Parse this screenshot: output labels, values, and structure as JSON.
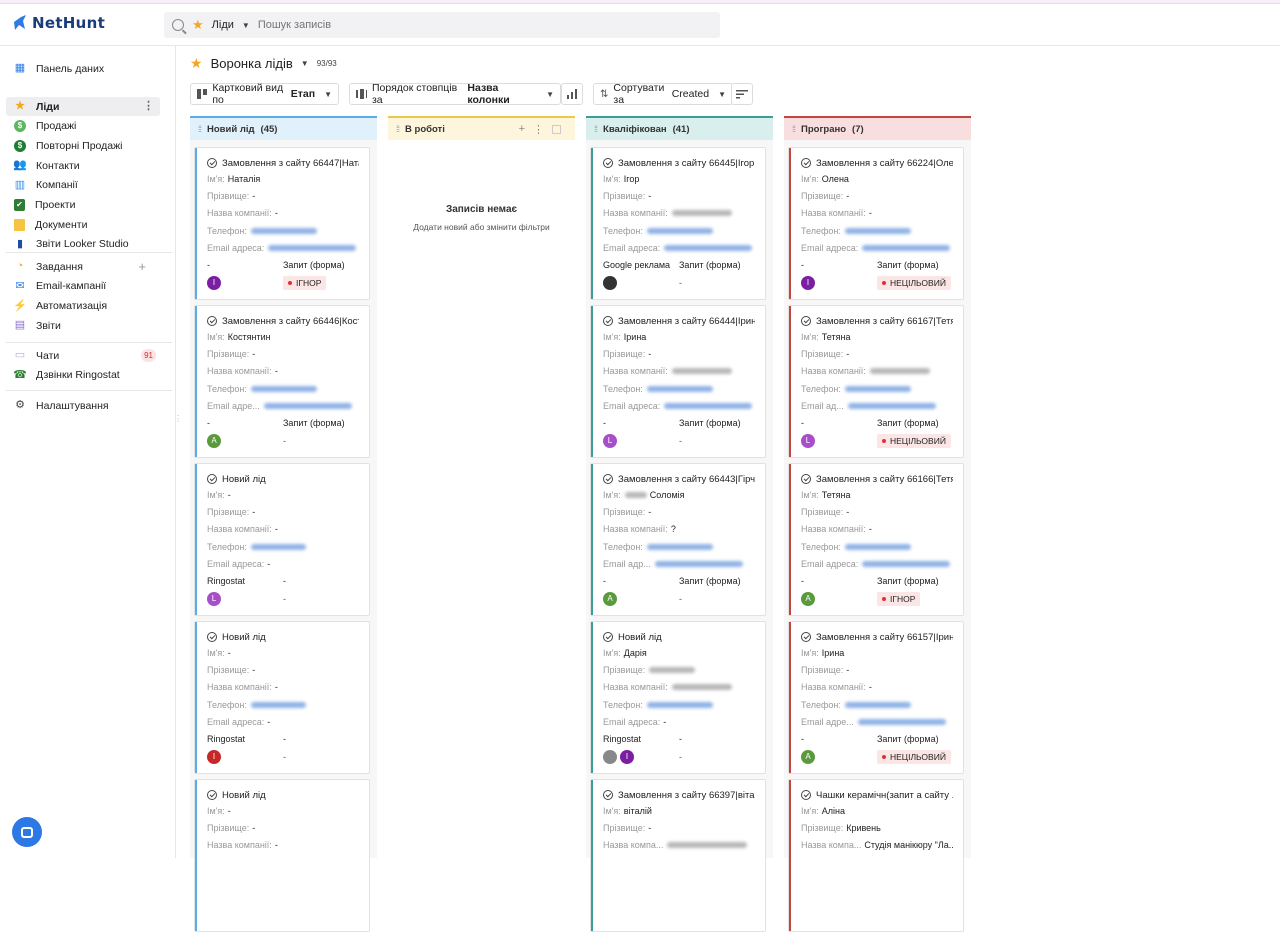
{
  "app": {
    "logo_text": "NetHunt"
  },
  "search": {
    "scope": "Ліди",
    "placeholder": "Пошук записів"
  },
  "sidebar": {
    "items": [
      {
        "id": "dashboard",
        "label": "Панель даних",
        "icon": "dashboard-icon",
        "color": "#2f7be5"
      },
      {
        "id": "leads",
        "label": "Ліди",
        "icon": "star-icon",
        "color": "#f4a623",
        "active": true
      },
      {
        "id": "sales",
        "label": "Продажі",
        "icon": "dollar-icon",
        "color": "#5cb85c"
      },
      {
        "id": "resales",
        "label": "Повторні Продажі",
        "icon": "dollar-icon",
        "color": "#1e7e34"
      },
      {
        "id": "contacts",
        "label": "Контакти",
        "icon": "people-icon",
        "color": "#6b6bd6"
      },
      {
        "id": "companies",
        "label": "Компанії",
        "icon": "building-icon",
        "color": "#3a8ee6"
      },
      {
        "id": "projects",
        "label": "Проекти",
        "icon": "clipboard-icon",
        "color": "#2e7d32"
      },
      {
        "id": "documents",
        "label": "Документи",
        "icon": "folder-icon",
        "color": "#f6c343"
      },
      {
        "id": "looker",
        "label": "Звіти Looker Studio",
        "icon": "bar-chart-icon",
        "color": "#1a4fa3"
      }
    ],
    "items2": [
      {
        "id": "tasks",
        "label": "Завдання",
        "icon": "check-circle-icon",
        "color": "#f4a623"
      },
      {
        "id": "email",
        "label": "Email-кампанії",
        "icon": "mail-icon",
        "color": "#2f7be5"
      },
      {
        "id": "automation",
        "label": "Автоматизація",
        "icon": "bolt-icon",
        "color": "#f4a623"
      },
      {
        "id": "reports",
        "label": "Звіти",
        "icon": "report-icon",
        "color": "#8a6fd1"
      }
    ],
    "items3": [
      {
        "id": "chats",
        "label": "Чати",
        "icon": "chat-icon",
        "color": "#c5a3e8",
        "badge": "91"
      },
      {
        "id": "ringostat",
        "label": "Дзвінки Ringostat",
        "icon": "phone-icon",
        "color": "#2e7d32"
      }
    ],
    "settings": {
      "label": "Налаштування",
      "icon": "gear-icon"
    }
  },
  "main": {
    "title": "Воронка лідів",
    "count": "93/93",
    "toolbar": {
      "view_prefix": "Картковий вид по",
      "view_value": "Етап",
      "order_prefix": "Порядок стовпців за",
      "order_value": "Назва колонки",
      "sort_prefix": "Сортувати за",
      "sort_value": "Created"
    }
  },
  "columns": [
    {
      "id": "new",
      "title": "Новий лід",
      "count": "(45)",
      "head_bg": "#e1f1fb",
      "bar": "#5aaee8",
      "cards": [
        {
          "title": "Замовлення з сайту 66447|Ната...",
          "name": "Наталія",
          "surname": "-",
          "company": "-",
          "phone": true,
          "email_label": "Email адреса:",
          "email": true,
          "b1": "-",
          "b2": "Запит (форма)",
          "avatars": [
            {
              "l": "I",
              "c": "#7b1fa2"
            }
          ],
          "tag": "ІГНОР"
        },
        {
          "title": "Замовлення з сайту 66446|Кост...",
          "name": "Костянтин",
          "surname": "-",
          "company": "-",
          "phone": true,
          "email_label": "Email адре...",
          "email": true,
          "b1": "-",
          "b2": "Запит (форма)",
          "avatars": [
            {
              "l": "A",
              "c": "#5a9a3c"
            }
          ],
          "tag": ""
        },
        {
          "title": "Новий лід",
          "title_blur": true,
          "name": "-",
          "surname": "-",
          "company": "-",
          "phone": true,
          "phone_link": true,
          "email_label": "Email адреса:",
          "email": false,
          "email_value": "-",
          "b1": "Ringostat",
          "b2": "-",
          "avatars": [
            {
              "l": "L",
              "c": "#a64fc9"
            }
          ],
          "tag": ""
        },
        {
          "title": "Новий лід",
          "title_blur": true,
          "name": "-",
          "surname": "-",
          "company": "-",
          "phone": true,
          "phone_link": true,
          "email_label": "Email адреса:",
          "email": false,
          "email_value": "-",
          "b1": "Ringostat",
          "b2": "-",
          "avatars": [
            {
              "l": "I",
              "c": "#c62828"
            }
          ],
          "tag": ""
        },
        {
          "title": "Новий лід",
          "title_blur": true,
          "name": "-",
          "surname": "-",
          "company": "-",
          "phone": false,
          "email_label": "",
          "email": false,
          "b1": "",
          "b2": "",
          "avatars": [],
          "tag": ""
        }
      ]
    },
    {
      "id": "inwork",
      "title": "В роботі",
      "count": "",
      "head_bg": "#fdf6dc",
      "bar": "#e8c94a",
      "empty_title": "Записів немає",
      "empty_sub": "Додати новий або змінити фільтри",
      "cards": []
    },
    {
      "id": "qualified",
      "title": "Кваліфікован",
      "count": "(41)",
      "head_bg": "#d9efed",
      "bar": "#3d9d98",
      "cards": [
        {
          "title": "Замовлення з сайту 66445|Ігор",
          "name": "Ігор",
          "surname": "-",
          "company": "blur",
          "phone": true,
          "email_label": "Email адреса:",
          "email": true,
          "b1": "Google реклама",
          "b2": "Запит (форма)",
          "avatars": [
            {
              "l": "",
              "c": "#333"
            }
          ],
          "tag": ""
        },
        {
          "title": "Замовлення з сайту 66444|Ірина",
          "name": "Ірина",
          "surname": "-",
          "company": "blur",
          "phone": true,
          "email_label": "Email адреса:",
          "email": true,
          "b1": "-",
          "b2": "Запит (форма)",
          "avatars": [
            {
              "l": "L",
              "c": "#a64fc9"
            }
          ],
          "tag": ""
        },
        {
          "title": "Замовлення з сайту 66443|Гірч...",
          "name": "Соломія",
          "name_blur": true,
          "surname": "-",
          "company": "?",
          "phone": true,
          "email_label": "Email адр...",
          "email": true,
          "b1": "-",
          "b2": "Запит (форма)",
          "avatars": [
            {
              "l": "A",
              "c": "#5a9a3c"
            }
          ],
          "tag": ""
        },
        {
          "title": "Новий лід",
          "title_blur": true,
          "name": "Дарія",
          "surname": "blur",
          "company": "blur",
          "phone": true,
          "email_label": "Email адреса:",
          "email": false,
          "email_value": "-",
          "b1": "Ringostat",
          "b2": "-",
          "avatars": [
            {
              "l": "",
              "c": "#888"
            },
            {
              "l": "I",
              "c": "#7b1fa2"
            }
          ],
          "tag": ""
        },
        {
          "title": "Замовлення з сайту 66397|віта...",
          "name": "віталій",
          "surname": "-",
          "company": "blur",
          "phone": false,
          "email_label": "",
          "email": false,
          "b1": "",
          "b2": "",
          "avatars": [],
          "tag": ""
        }
      ]
    },
    {
      "id": "lost",
      "title": "Програно",
      "count": "(7)",
      "head_bg": "#f8dede",
      "bar": "#c0463f",
      "cards": [
        {
          "title": "Замовлення з сайту 66224|Олена",
          "name": "Олена",
          "surname": "-",
          "company": "-",
          "phone": true,
          "email_label": "Email адреса:",
          "email": true,
          "b1": "-",
          "b2": "Запит (форма)",
          "avatars": [
            {
              "l": "I",
              "c": "#7b1fa2"
            }
          ],
          "tag": "НЕЦІЛЬОВИЙ"
        },
        {
          "title": "Замовлення з сайту 66167|Тетя...",
          "name": "Тетяна",
          "surname": "-",
          "company": "blur",
          "phone": true,
          "email_label": "Email ад...",
          "email": true,
          "b1": "-",
          "b2": "Запит (форма)",
          "avatars": [
            {
              "l": "L",
              "c": "#a64fc9"
            }
          ],
          "tag": "НЕЦІЛЬОВИЙ"
        },
        {
          "title": "Замовлення з сайту 66166|Тетя...",
          "name": "Тетяна",
          "surname": "-",
          "company": "-",
          "phone": true,
          "email_label": "Email адреса:",
          "email": true,
          "b1": "-",
          "b2": "Запит (форма)",
          "avatars": [
            {
              "l": "A",
              "c": "#5a9a3c"
            }
          ],
          "tag": "ІГНОР"
        },
        {
          "title": "Замовлення з сайту 66157|Ірина",
          "name": "Ірина",
          "surname": "-",
          "company": "-",
          "phone": true,
          "email_label": "Email адре...",
          "email": true,
          "b1": "-",
          "b2": "Запит (форма)",
          "avatars": [
            {
              "l": "A",
              "c": "#5a9a3c"
            }
          ],
          "tag": "НЕЦІЛЬОВИЙ"
        },
        {
          "title": "Чашки керамічн(запит а сайту ...",
          "name": "Аліна",
          "surname": "Кривень",
          "company": "Студія манікюру \"Ла...",
          "phone": false,
          "email_label": "",
          "email": false,
          "b1": "",
          "b2": "",
          "avatars": [],
          "tag": ""
        }
      ]
    }
  ],
  "labels": {
    "name": "Ім'я:",
    "surname": "Прізвище:",
    "company": "Назва компанії:",
    "company_short": "Назва компа...",
    "phone": "Телефон:"
  }
}
